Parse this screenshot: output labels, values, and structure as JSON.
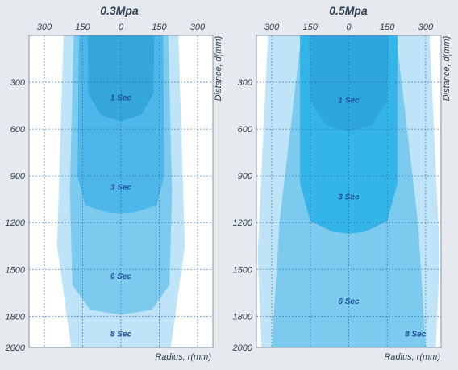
{
  "chart_data": [
    {
      "type": "area",
      "title": "0.3Mpa",
      "xlabel": "Radius, r(mm)",
      "ylabel": "Distance, d(mm)",
      "x_ticks": [
        "300",
        "150",
        "0",
        "150",
        "300"
      ],
      "x_tick_values": [
        -300,
        -150,
        0,
        150,
        300
      ],
      "y_ticks": [
        "300",
        "600",
        "900",
        "1200",
        "1500",
        "1800",
        "2000"
      ],
      "y_tick_values": [
        300,
        600,
        900,
        1200,
        1500,
        1800,
        2000
      ],
      "xlim": [
        -360,
        360
      ],
      "ylim": [
        0,
        2000
      ],
      "y_inverted": true,
      "grid": true,
      "series": [
        {
          "name": "8 Sec",
          "label_at": [
            0,
            1910
          ],
          "color": "#bfe3f7",
          "outline": [
            [
              -225,
              0
            ],
            [
              225,
              0
            ],
            [
              250,
              1350
            ],
            [
              195,
              2000
            ],
            [
              -195,
              2000
            ],
            [
              -250,
              1350
            ],
            [
              -225,
              0
            ]
          ]
        },
        {
          "name": "6 Sec",
          "label_at": [
            0,
            1540
          ],
          "color": "#7ccbef",
          "outline": [
            [
              -185,
              0
            ],
            [
              185,
              0
            ],
            [
              200,
              1000
            ],
            [
              190,
              1600
            ],
            [
              120,
              1760
            ],
            [
              0,
              1790
            ],
            [
              -120,
              1760
            ],
            [
              -190,
              1600
            ],
            [
              -200,
              1000
            ],
            [
              -185,
              0
            ]
          ]
        },
        {
          "name": "3 Sec",
          "label_at": [
            0,
            970
          ],
          "color": "#4cb7e8",
          "outline": [
            [
              -165,
              0
            ],
            [
              165,
              0
            ],
            [
              170,
              900
            ],
            [
              140,
              1090
            ],
            [
              50,
              1135
            ],
            [
              0,
              1140
            ],
            [
              -50,
              1135
            ],
            [
              -140,
              1090
            ],
            [
              -170,
              900
            ],
            [
              -165,
              0
            ]
          ]
        },
        {
          "name": "1 Sec",
          "label_at": [
            0,
            395
          ],
          "color": "#35a6dc",
          "outline": [
            [
              -130,
              0
            ],
            [
              130,
              0
            ],
            [
              128,
              370
            ],
            [
              80,
              510
            ],
            [
              0,
              550
            ],
            [
              -80,
              510
            ],
            [
              -128,
              370
            ],
            [
              -130,
              0
            ]
          ]
        }
      ]
    },
    {
      "type": "area",
      "title": "0.5Mpa",
      "xlabel": "Radius, r(mm)",
      "ylabel": "Distance, d(mm)",
      "x_ticks": [
        "300",
        "150",
        "0",
        "150",
        "300"
      ],
      "x_tick_values": [
        -300,
        -150,
        0,
        150,
        300
      ],
      "y_ticks": [
        "300",
        "600",
        "900",
        "1200",
        "1500",
        "1800",
        "2000"
      ],
      "y_tick_values": [
        300,
        600,
        900,
        1200,
        1500,
        1800,
        2000
      ],
      "xlim": [
        -360,
        360
      ],
      "ylim": [
        0,
        2000
      ],
      "y_inverted": true,
      "grid": true,
      "series": [
        {
          "name": "8 Sec",
          "label_at": [
            260,
            1910
          ],
          "color": "#bfe3f7",
          "outline": [
            [
              -315,
              0
            ],
            [
              315,
              0
            ],
            [
              355,
              1400
            ],
            [
              340,
              2000
            ],
            [
              -340,
              2000
            ],
            [
              -355,
              1400
            ],
            [
              -315,
              0
            ]
          ]
        },
        {
          "name": "6 Sec",
          "label_at": [
            0,
            1700
          ],
          "color": "#7ccbef",
          "outline": [
            [
              -185,
              0
            ],
            [
              185,
              0
            ],
            [
              270,
              1200
            ],
            [
              300,
              2000
            ],
            [
              -300,
              2000
            ],
            [
              -270,
              1200
            ],
            [
              -185,
              0
            ]
          ]
        },
        {
          "name": "3 Sec",
          "label_at": [
            0,
            1030
          ],
          "color": "#33b5e8",
          "outline": [
            [
              -190,
              0
            ],
            [
              190,
              0
            ],
            [
              190,
              950
            ],
            [
              150,
              1190
            ],
            [
              60,
              1260
            ],
            [
              0,
              1270
            ],
            [
              -60,
              1260
            ],
            [
              -150,
              1190
            ],
            [
              -190,
              950
            ],
            [
              -190,
              0
            ]
          ]
        },
        {
          "name": "1 Sec",
          "label_at": [
            0,
            410
          ],
          "color": "#2ea6dd",
          "outline": [
            [
              -155,
              0
            ],
            [
              155,
              0
            ],
            [
              150,
              420
            ],
            [
              90,
              575
            ],
            [
              0,
              615
            ],
            [
              -90,
              575
            ],
            [
              -150,
              420
            ],
            [
              -155,
              0
            ]
          ]
        }
      ]
    }
  ]
}
